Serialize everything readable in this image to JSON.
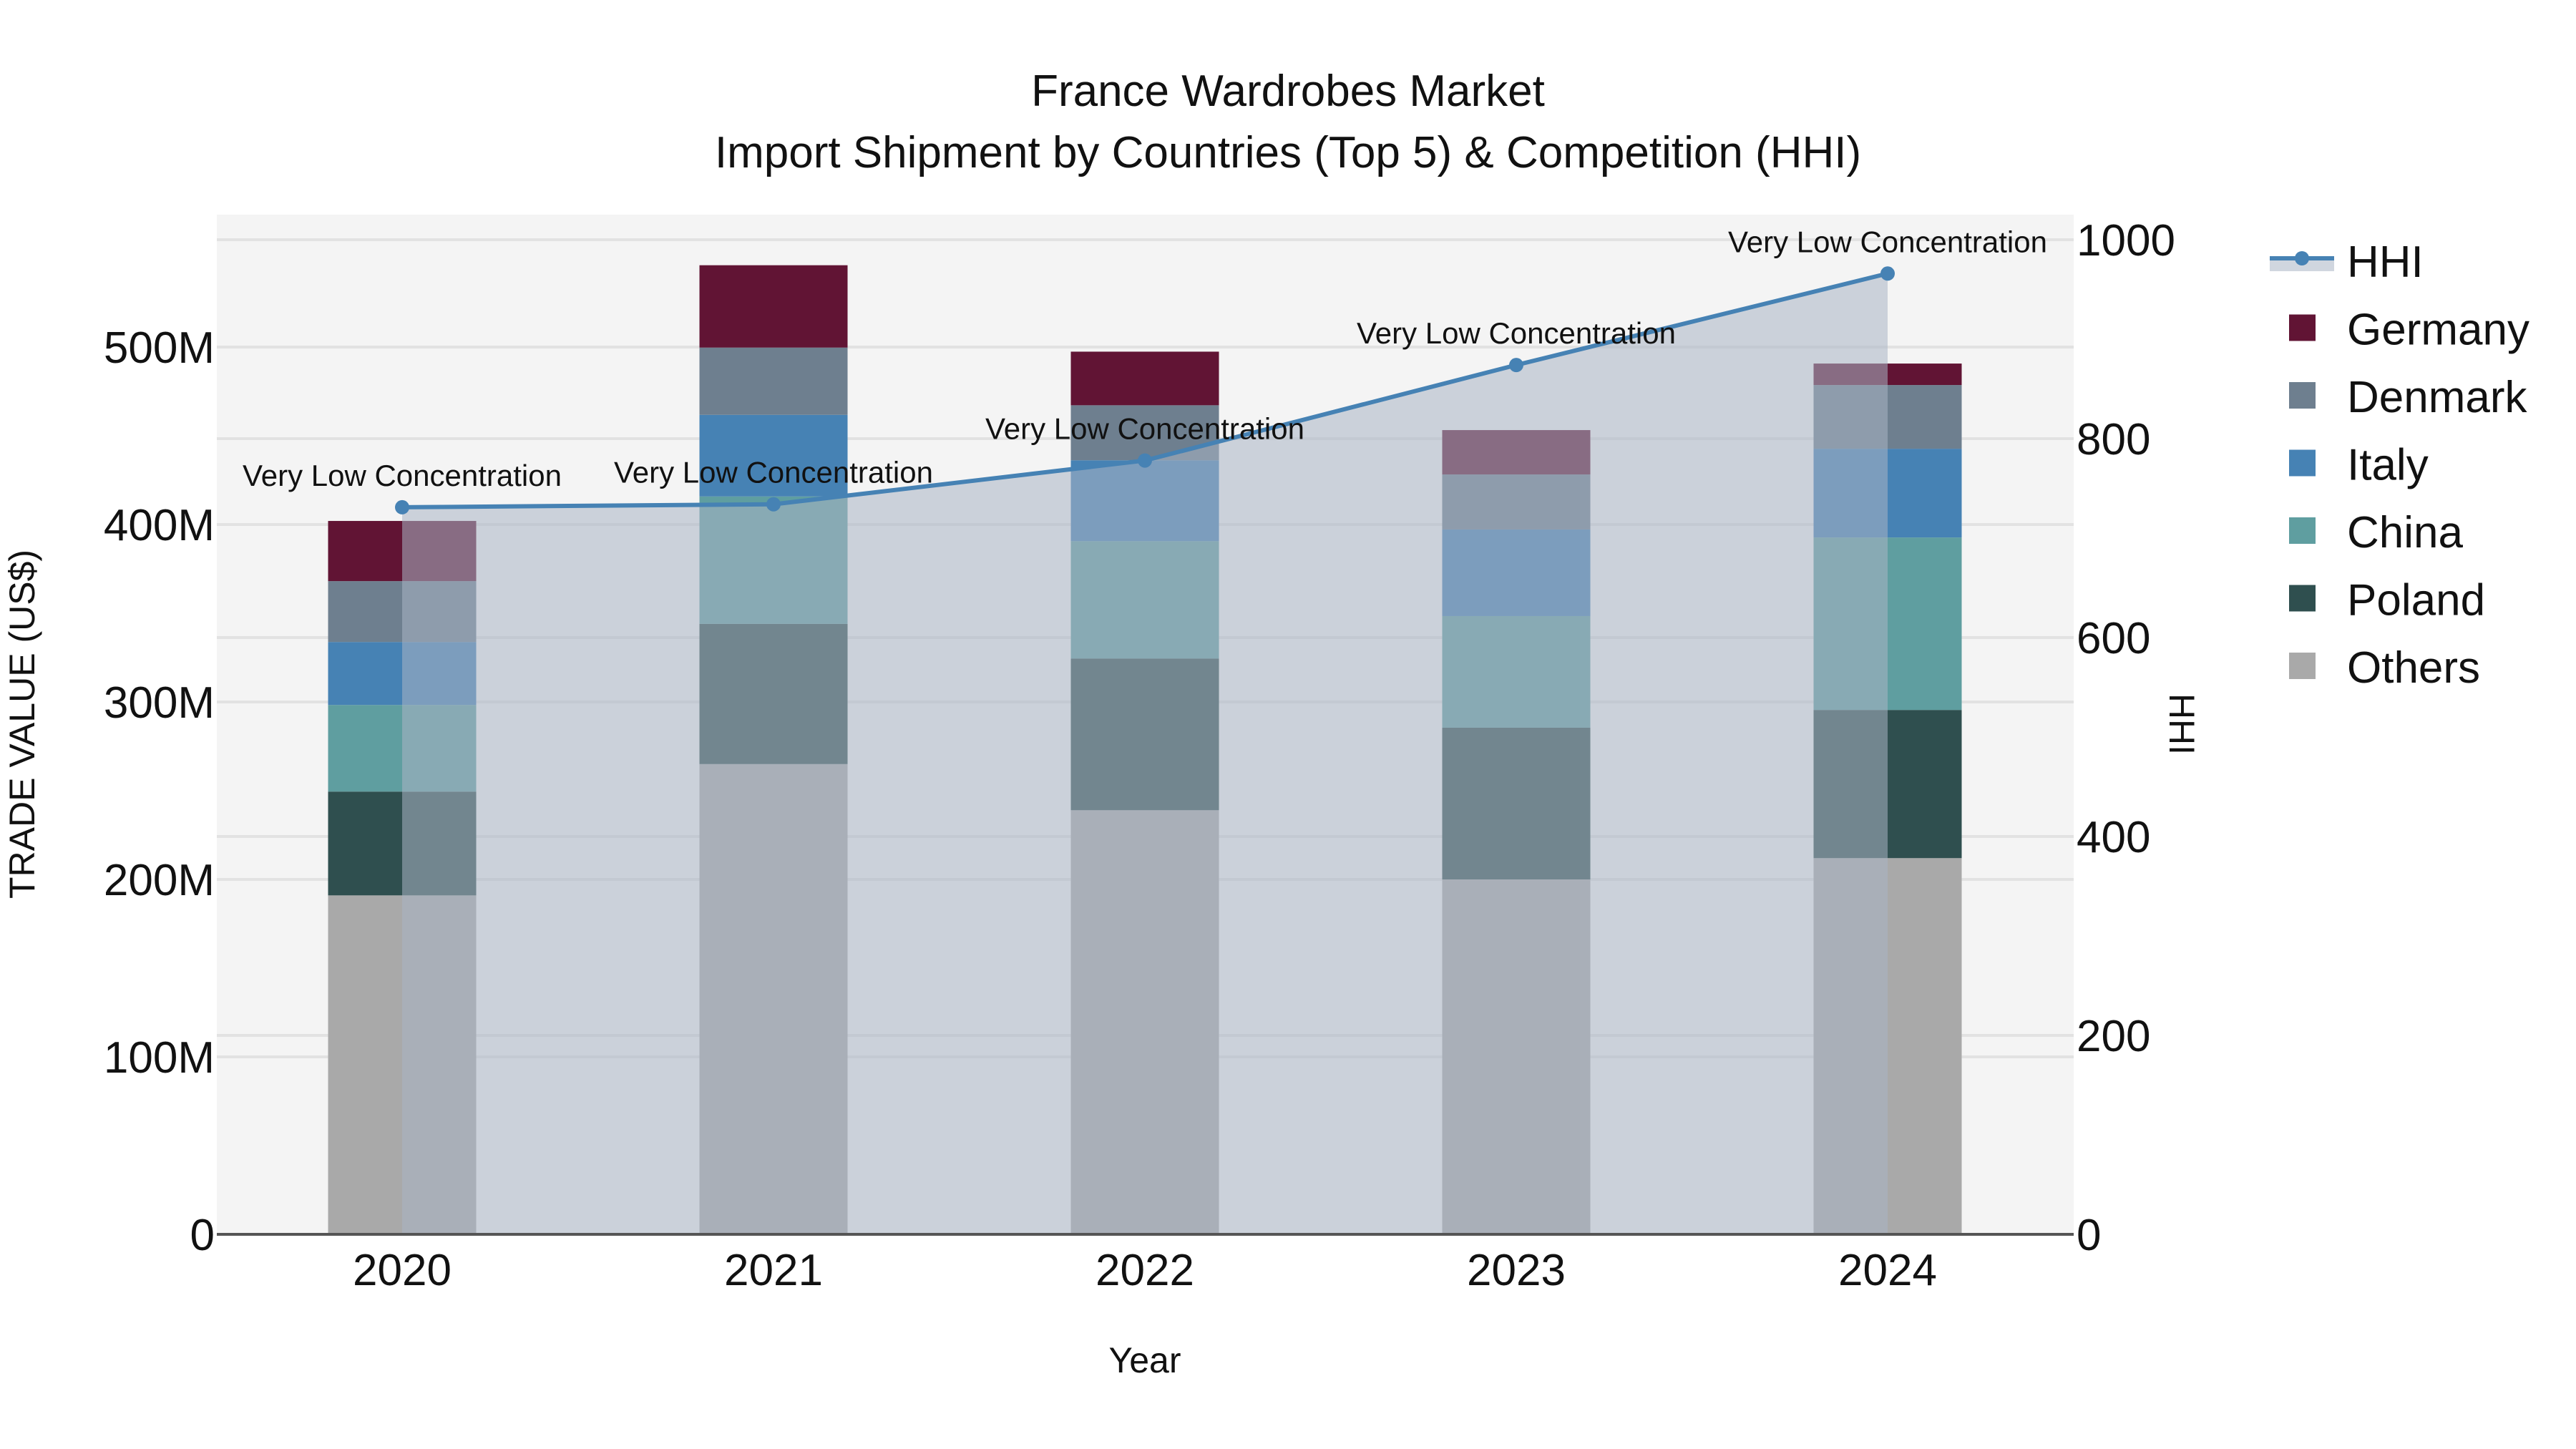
{
  "title": {
    "line1": "France Wardrobes Market",
    "line2": "Import Shipment by Countries (Top 5) & Competition (HHI)"
  },
  "axes": {
    "x_title": "Year",
    "y_left_title": "TRADE VALUE (US$)",
    "y_right_title": "HHI",
    "y_left_ticks": [
      "0",
      "100M",
      "200M",
      "300M",
      "400M",
      "500M"
    ],
    "y_right_ticks": [
      "0",
      "200",
      "400",
      "600",
      "800",
      "1000"
    ],
    "x_ticks": [
      "2020",
      "2021",
      "2022",
      "2023",
      "2024"
    ]
  },
  "legend": [
    {
      "name": "HHI",
      "color": "#4682B4",
      "type": "line"
    },
    {
      "name": "Germany",
      "color": "#611434",
      "type": "bar"
    },
    {
      "name": "Denmark",
      "color": "#6E7F8F",
      "type": "bar"
    },
    {
      "name": "Italy",
      "color": "#4682B4",
      "type": "bar"
    },
    {
      "name": "China",
      "color": "#5F9EA0",
      "type": "bar"
    },
    {
      "name": "Poland",
      "color": "#2F4F4F",
      "type": "bar"
    },
    {
      "name": "Others",
      "color": "#A9A9A9",
      "type": "bar"
    }
  ],
  "annotations": [
    "Very Low Concentration",
    "Very Low Concentration",
    "Very Low Concentration",
    "Very Low Concentration",
    "Very Low Concentration"
  ],
  "chart_data": {
    "type": "bar",
    "subtype": "stacked bar with line overlay (secondary axis)",
    "title": "France Wardrobes Market — Import Shipment by Countries (Top 5) & Competition (HHI)",
    "xlabel": "Year",
    "ylabel": "TRADE VALUE (US$)",
    "y2label": "HHI",
    "categories": [
      "2020",
      "2021",
      "2022",
      "2023",
      "2024"
    ],
    "ylim": [
      0,
      575000000
    ],
    "y2lim": [
      0,
      1025
    ],
    "grid": true,
    "legend_position": "right",
    "series": [
      {
        "name": "Others",
        "color": "#A9A9A9",
        "values": [
          191000000,
          265000000,
          239000000,
          200000000,
          212000000
        ]
      },
      {
        "name": "Poland",
        "color": "#2F4F4F",
        "values": [
          58500000,
          79000000,
          85500000,
          85500000,
          83500000
        ]
      },
      {
        "name": "China",
        "color": "#5F9EA0",
        "values": [
          48800000,
          71800000,
          66100000,
          62900000,
          97200000
        ]
      },
      {
        "name": "Italy",
        "color": "#4682B4",
        "values": [
          35500000,
          46000000,
          45600000,
          48800000,
          50000000
        ]
      },
      {
        "name": "Denmark",
        "color": "#6E7F8F",
        "values": [
          34300000,
          37900000,
          31000000,
          31000000,
          35900000
        ]
      },
      {
        "name": "Germany",
        "color": "#611434",
        "values": [
          33900000,
          46400000,
          30200000,
          25000000,
          12100000
        ]
      }
    ],
    "line_series": {
      "name": "HHI",
      "axis": "right",
      "color": "#4682B4",
      "fill": "tozeroy",
      "values": [
        731,
        734,
        778,
        874,
        966
      ],
      "labels": [
        "Very Low Concentration",
        "Very Low Concentration",
        "Very Low Concentration",
        "Very Low Concentration",
        "Very Low Concentration"
      ]
    }
  }
}
